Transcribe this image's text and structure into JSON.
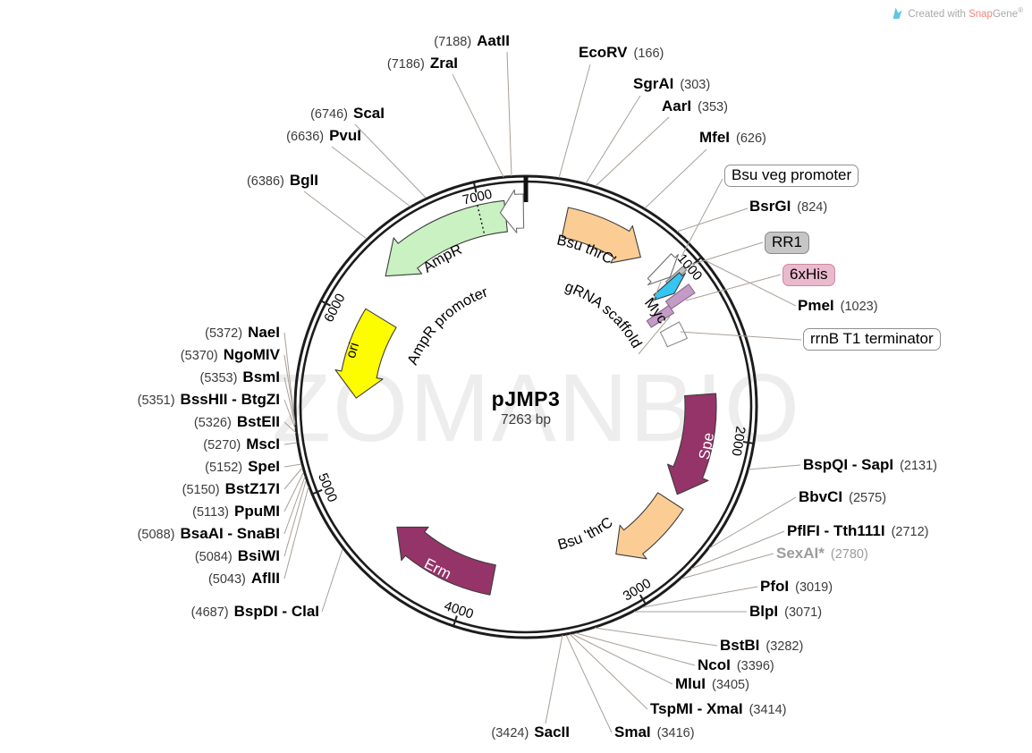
{
  "plasmid": {
    "name": "pJMP3",
    "size": "7263 bp",
    "length_bp": 7263
  },
  "watermark": "ZOMANBIO",
  "credit": {
    "prefix": "Created with ",
    "snap": "Snap",
    "gene": "Gene",
    "reg": "®"
  },
  "colors": {
    "ring": "#1c1c1c",
    "leader": "#a9a098",
    "amp_green": "#c9f1c2",
    "ori_yellow": "#fdfd00",
    "magenta": "#943468",
    "orange": "#fbcd94",
    "cyan": "#35c5f2",
    "plum": "#c49bc4",
    "gray_feature": "#c3c3c3",
    "watermark_gray": "#ededed"
  },
  "ticks": [
    {
      "bp": 1000,
      "label": "1000"
    },
    {
      "bp": 2000,
      "label": "2000"
    },
    {
      "bp": 3000,
      "label": "3000"
    },
    {
      "bp": 4000,
      "label": "4000"
    },
    {
      "bp": 5000,
      "label": "5000"
    },
    {
      "bp": 6000,
      "label": "6000"
    },
    {
      "bp": 7000,
      "label": "7000"
    }
  ],
  "features": {
    "ampr": {
      "label": "AmpR"
    },
    "ampr_promoter": {
      "label": "AmpR promoter"
    },
    "ori": {
      "label": "ori"
    },
    "erm": {
      "label": "Erm"
    },
    "spe": {
      "label": "Spe"
    },
    "bsu_thrc_up": {
      "label": "Bsu thrC'"
    },
    "bsu_thrc_down": {
      "label": "Bsu 'thrC"
    },
    "grna_scaffold": {
      "label": "gRNA scaffold"
    },
    "myc": {
      "label": "Myc"
    },
    "veg": {
      "label": "Bsu veg promoter"
    },
    "rr1": {
      "label": "RR1"
    },
    "his": {
      "label": "6xHis"
    },
    "rrnb": {
      "label": "rrnB T1 terminator"
    }
  },
  "sites": {
    "aatii": {
      "name": "AatII",
      "pos": "(7188)"
    },
    "zrai": {
      "name": "ZraI",
      "pos": "(7186)"
    },
    "scai": {
      "name": "ScaI",
      "pos": "(6746)"
    },
    "pvui": {
      "name": "PvuI",
      "pos": "(6636)"
    },
    "bgli": {
      "name": "BglI",
      "pos": "(6386)"
    },
    "naei": {
      "name": "NaeI",
      "pos": "(5372)"
    },
    "ngomiv": {
      "name": "NgoMIV",
      "pos": "(5370)"
    },
    "bsmi": {
      "name": "BsmI",
      "pos": "(5353)"
    },
    "bsshii": {
      "name": "BssHII - BtgZI",
      "pos": "(5351)"
    },
    "bsteii": {
      "name": "BstEII",
      "pos": "(5326)"
    },
    "msci": {
      "name": "MscI",
      "pos": "(5270)"
    },
    "spei": {
      "name": "SpeI",
      "pos": "(5152)"
    },
    "bstz17i": {
      "name": "BstZ17I",
      "pos": "(5150)"
    },
    "ppumi": {
      "name": "PpuMI",
      "pos": "(5113)"
    },
    "bsaai": {
      "name": "BsaAI - SnaBI",
      "pos": "(5088)"
    },
    "bsiwi": {
      "name": "BsiWI",
      "pos": "(5084)"
    },
    "aflii": {
      "name": "AflII",
      "pos": "(5043)"
    },
    "bspdi": {
      "name": "BspDI - ClaI",
      "pos": "(4687)"
    },
    "sacii": {
      "name": "SacII",
      "pos": "(3424)"
    },
    "smai": {
      "name": "SmaI",
      "pos": "(3416)"
    },
    "tspmi": {
      "name": "TspMI - XmaI",
      "pos": "(3414)"
    },
    "mlui": {
      "name": "MluI",
      "pos": "(3405)"
    },
    "ncoi": {
      "name": "NcoI",
      "pos": "(3396)"
    },
    "bstbi": {
      "name": "BstBI",
      "pos": "(3282)"
    },
    "blpi": {
      "name": "BlpI",
      "pos": "(3071)"
    },
    "pfoi": {
      "name": "PfoI",
      "pos": "(3019)"
    },
    "sexai": {
      "name": "SexAI*",
      "pos": "(2780)",
      "muted": true
    },
    "pflfi": {
      "name": "PflFI - Tth111I",
      "pos": "(2712)"
    },
    "bbvci": {
      "name": "BbvCI",
      "pos": "(2575)"
    },
    "bspqi": {
      "name": "BspQI - SapI",
      "pos": "(2131)"
    },
    "ecorv": {
      "name": "EcoRV",
      "pos": "(166)"
    },
    "sgrai": {
      "name": "SgrAI",
      "pos": "(303)"
    },
    "aari": {
      "name": "AarI",
      "pos": "(353)"
    },
    "mfei": {
      "name": "MfeI",
      "pos": "(626)"
    },
    "bsrgi": {
      "name": "BsrGI",
      "pos": "(824)"
    },
    "pmei": {
      "name": "PmeI",
      "pos": "(1023)"
    }
  }
}
